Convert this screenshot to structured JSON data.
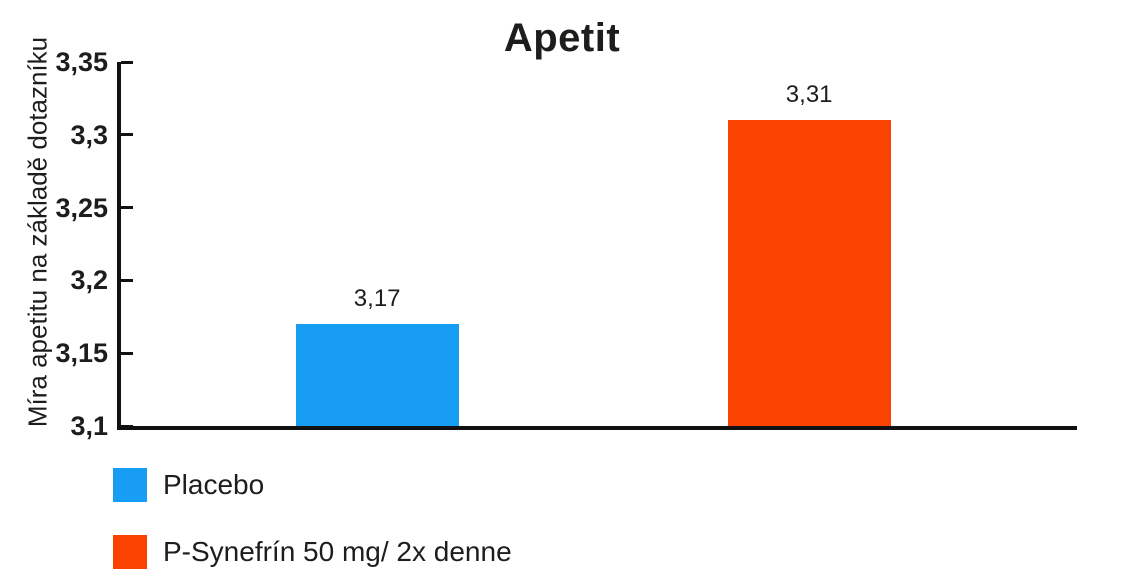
{
  "chart_data": {
    "type": "bar",
    "title": "Apetit",
    "ylabel": "Míra apetitu na základě dotazníku",
    "xlabel": "",
    "categories": [
      "Placebo",
      "P-Synefrín 50 mg/ 2x denne"
    ],
    "values": [
      3.17,
      3.31
    ],
    "value_labels": [
      "3,17",
      "3,31"
    ],
    "colors": [
      "#189df5",
      "#fa4300"
    ],
    "ylim": [
      3.1,
      3.35
    ],
    "yticks": [
      3.1,
      3.15,
      3.2,
      3.25,
      3.3,
      3.35
    ],
    "ytick_labels": [
      "3,1",
      "3,15",
      "3,2",
      "3,25",
      "3,3",
      "3,35"
    ],
    "decimal_separator": ",",
    "grid": false,
    "legend_position": "bottom-left",
    "axis_color": "#111111",
    "text_color": "#1d1d1b",
    "background_color": "#ffffff"
  }
}
